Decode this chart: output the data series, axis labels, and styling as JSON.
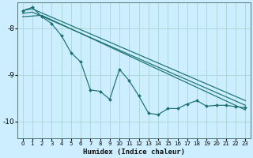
{
  "xlabel": "Humidex (Indice chaleur)",
  "bg_color": "#cceeff",
  "line_color": "#1a7070",
  "grid_color": "#aad4d4",
  "xlim": [
    -0.5,
    23.5
  ],
  "ylim": [
    -10.35,
    -7.45
  ],
  "yticks": [
    -10,
    -9,
    -8
  ],
  "xticks": [
    0,
    1,
    2,
    3,
    4,
    5,
    6,
    7,
    8,
    9,
    10,
    11,
    12,
    13,
    14,
    15,
    16,
    17,
    18,
    19,
    20,
    21,
    22,
    23
  ],
  "line1_x": [
    0,
    1,
    23
  ],
  "line1_y": [
    -7.62,
    -7.58,
    -9.55
  ],
  "line2_x": [
    0,
    1,
    23
  ],
  "line2_y": [
    -7.68,
    -7.65,
    -9.65
  ],
  "line3_x": [
    0,
    2,
    23
  ],
  "line3_y": [
    -7.75,
    -7.72,
    -9.75
  ],
  "jagged_x": [
    0,
    1,
    2,
    3,
    4,
    5,
    6,
    7,
    8,
    9,
    10,
    11,
    12,
    13,
    14,
    15,
    16,
    17,
    18,
    19,
    20,
    21,
    22,
    23
  ],
  "jagged_y": [
    -7.62,
    -7.55,
    -7.75,
    -7.9,
    -8.15,
    -8.52,
    -8.72,
    -9.32,
    -9.35,
    -9.52,
    -8.88,
    -9.12,
    -9.45,
    -9.82,
    -9.85,
    -9.72,
    -9.72,
    -9.62,
    -9.55,
    -9.67,
    -9.65,
    -9.65,
    -9.68,
    -9.7
  ]
}
